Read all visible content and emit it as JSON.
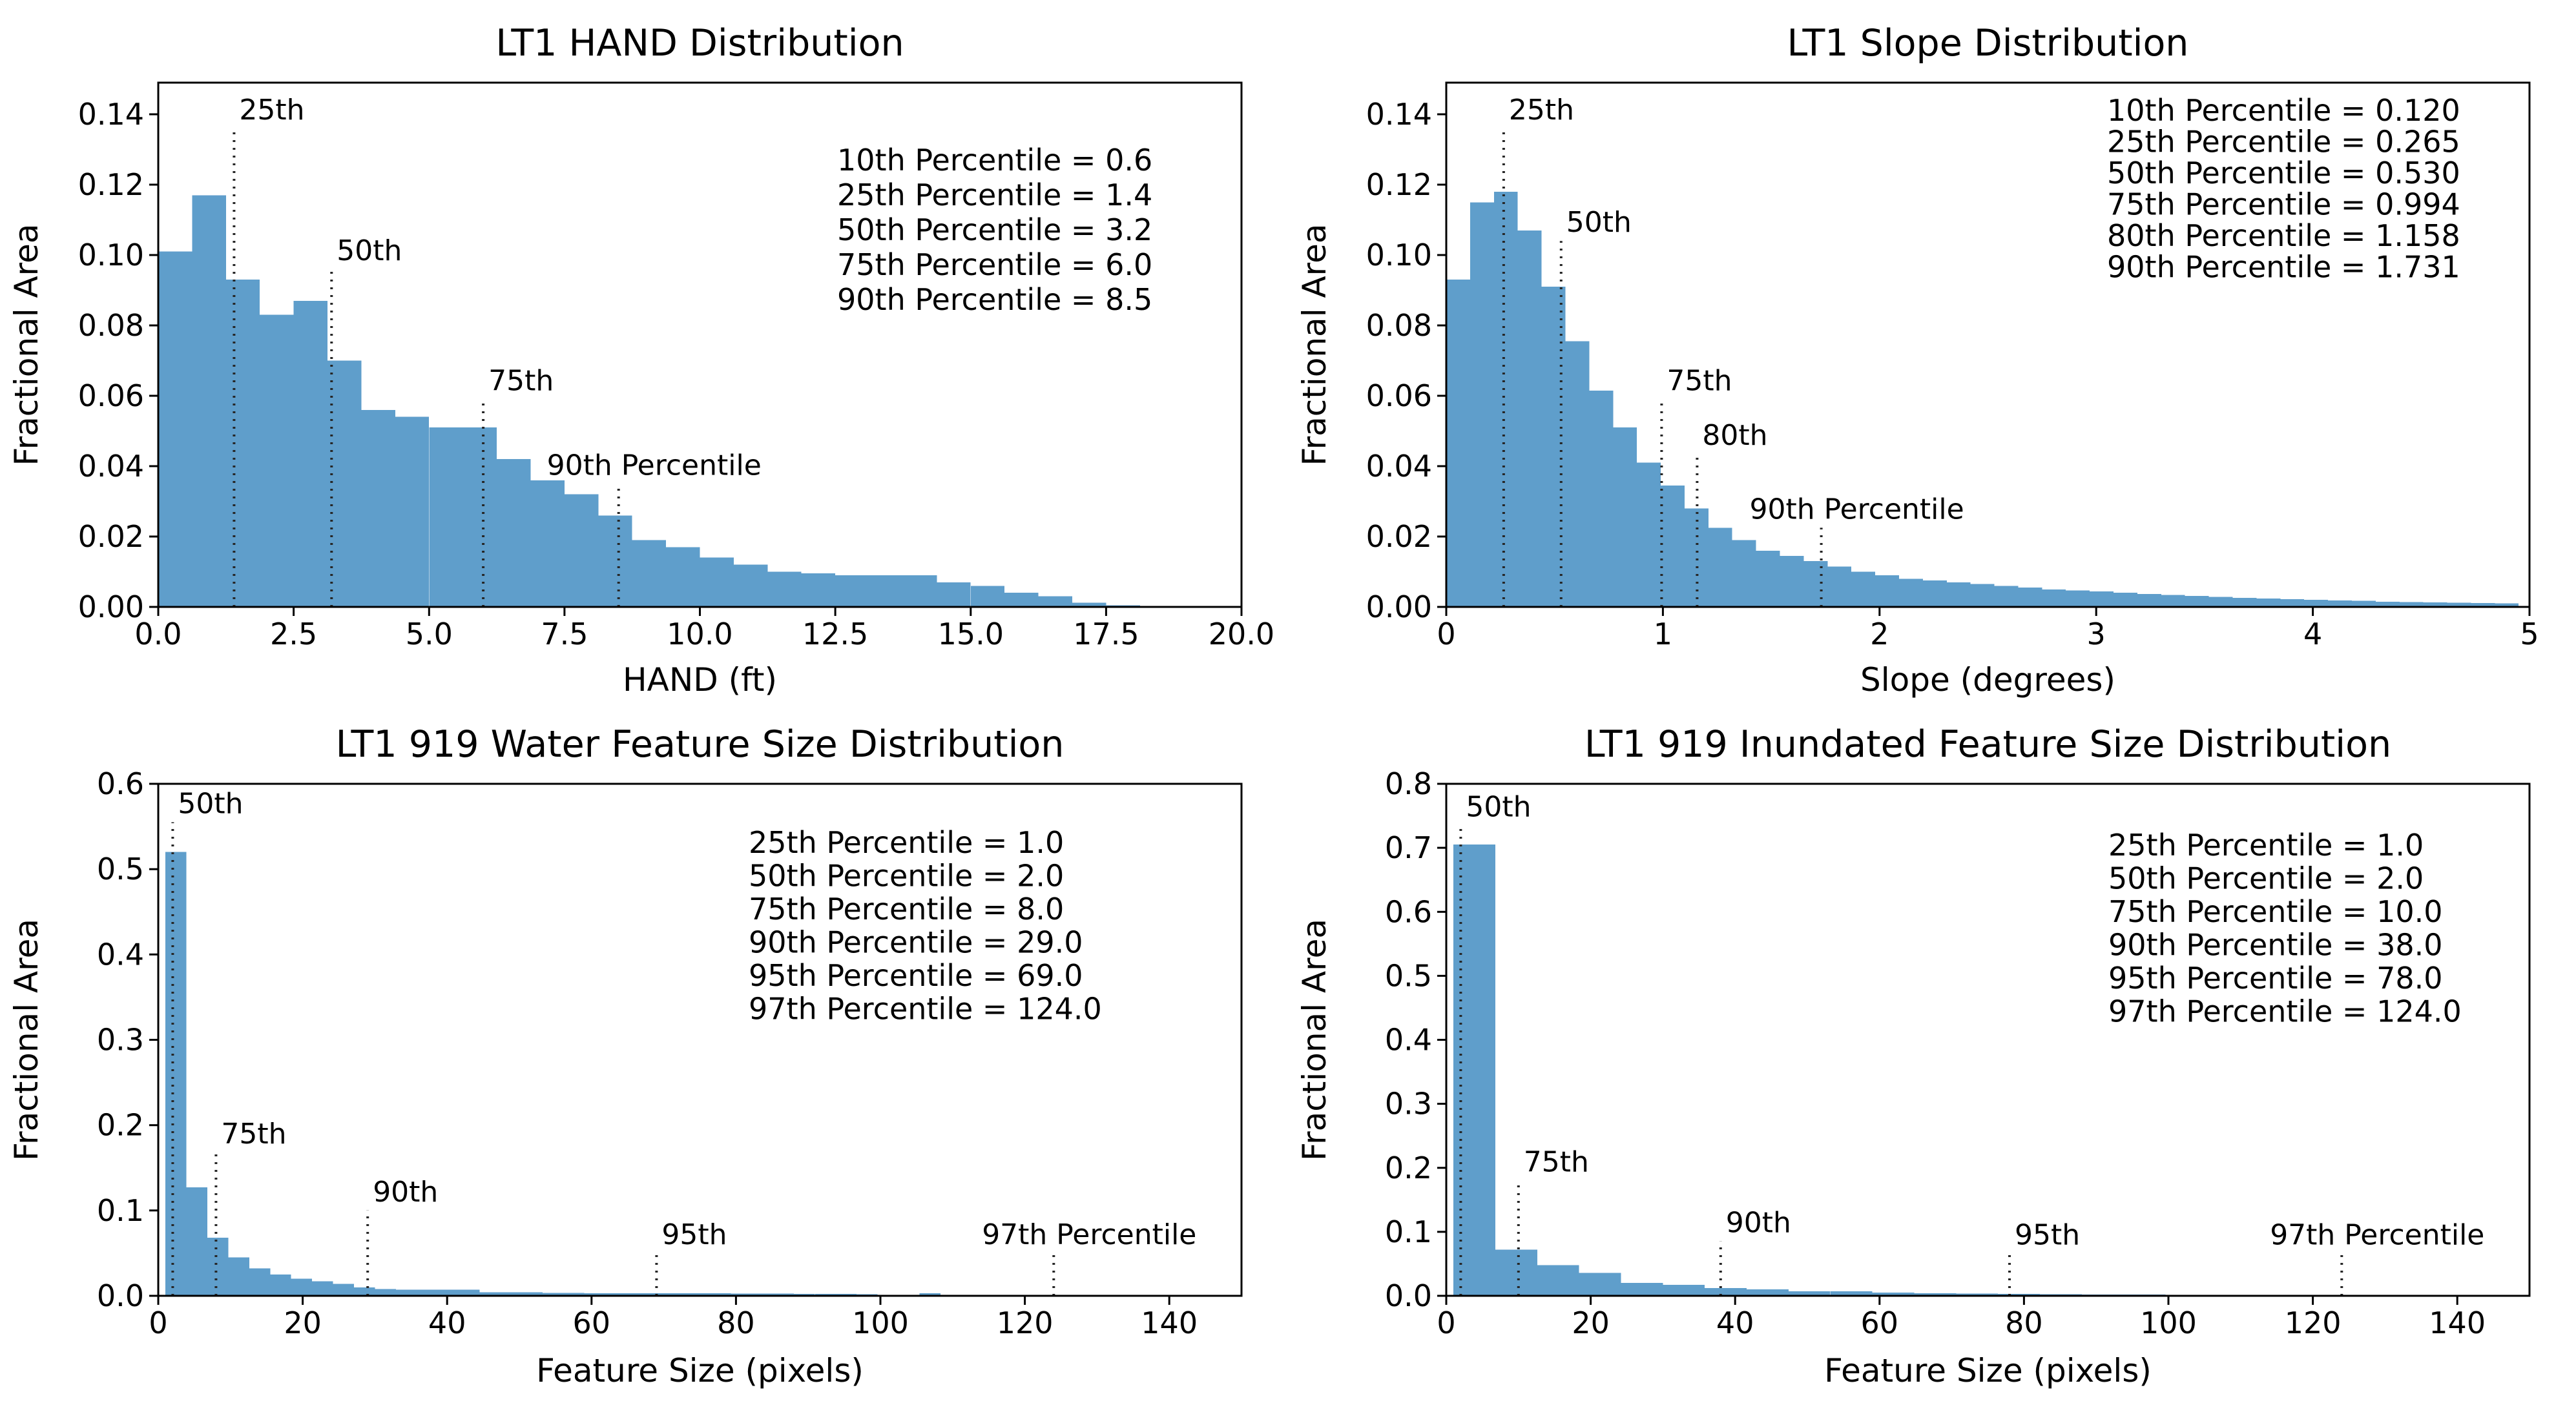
{
  "figure": {
    "background": "#ffffff",
    "bar_color": "#5f9ecb",
    "spine_color": "#000000",
    "dotted_line_color": "#262626",
    "text_color": "#000000"
  },
  "chart_data": [
    {
      "type": "bar",
      "id": "hand-distribution",
      "title": "LT1 HAND Distribution",
      "xlabel": "HAND (ft)",
      "ylabel": "Fractional Area",
      "xlim": [
        0,
        20
      ],
      "ylim": [
        0,
        0.149
      ],
      "grid": false,
      "xticks": {
        "values": [
          0,
          2.5,
          5,
          7.5,
          10,
          12.5,
          15,
          17.5,
          20
        ],
        "labels": [
          "0.0",
          "2.5",
          "5.0",
          "7.5",
          "10.0",
          "12.5",
          "15.0",
          "17.5",
          "20.0"
        ]
      },
      "yticks": {
        "values": [
          0,
          0.02,
          0.04,
          0.06,
          0.08,
          0.1,
          0.12,
          0.14
        ],
        "labels": [
          "0.00",
          "0.02",
          "0.04",
          "0.06",
          "0.08",
          "0.10",
          "0.12",
          "0.14"
        ]
      },
      "bins": {
        "start": 0,
        "width": 0.625
      },
      "values": [
        0.101,
        0.117,
        0.093,
        0.083,
        0.087,
        0.07,
        0.056,
        0.054,
        0.051,
        0.051,
        0.042,
        0.036,
        0.032,
        0.026,
        0.019,
        0.017,
        0.014,
        0.012,
        0.01,
        0.0095,
        0.009,
        0.009,
        0.009,
        0.007,
        0.006,
        0.004,
        0.003,
        0.0012,
        0.0005,
        0,
        0,
        0
      ],
      "percentile_lines": [
        {
          "label": "25th",
          "x": 1.4,
          "top": 0.136
        },
        {
          "label": "50th",
          "x": 3.2,
          "top": 0.096
        },
        {
          "label": "75th",
          "x": 6.0,
          "top": 0.059
        },
        {
          "label": "90th Percentile",
          "x": 8.5,
          "top": 0.035
        }
      ],
      "stats": [
        "10th Percentile = 0.6",
        "25th Percentile = 1.4",
        "50th Percentile = 3.2",
        "75th Percentile = 6.0",
        "90th Percentile = 8.5"
      ]
    },
    {
      "type": "bar",
      "id": "slope-distribution",
      "title": "LT1 Slope Distribution",
      "xlabel": "Slope (degrees)",
      "ylabel": "Fractional Area",
      "xlim": [
        0,
        5
      ],
      "ylim": [
        0,
        0.149
      ],
      "grid": false,
      "xticks": {
        "values": [
          0,
          1,
          2,
          3,
          4,
          5
        ],
        "labels": [
          "0",
          "1",
          "2",
          "3",
          "4",
          "5"
        ]
      },
      "yticks": {
        "values": [
          0,
          0.02,
          0.04,
          0.06,
          0.08,
          0.1,
          0.12,
          0.14
        ],
        "labels": [
          "0.00",
          "0.02",
          "0.04",
          "0.06",
          "0.08",
          "0.10",
          "0.12",
          "0.14"
        ]
      },
      "bins": {
        "start": 0,
        "width": 0.11
      },
      "values": [
        0.093,
        0.115,
        0.118,
        0.107,
        0.091,
        0.0755,
        0.0615,
        0.051,
        0.041,
        0.0345,
        0.028,
        0.0225,
        0.019,
        0.016,
        0.0145,
        0.013,
        0.0115,
        0.01,
        0.009,
        0.008,
        0.0075,
        0.007,
        0.0065,
        0.006,
        0.0055,
        0.005,
        0.0047,
        0.0044,
        0.004,
        0.0037,
        0.0034,
        0.0031,
        0.0028,
        0.0026,
        0.0024,
        0.0022,
        0.002,
        0.0018,
        0.0017,
        0.0015,
        0.0014,
        0.0013,
        0.0012,
        0.0011,
        0.001
      ],
      "percentile_lines": [
        {
          "label": "25th",
          "x": 0.265,
          "top": 0.136
        },
        {
          "label": "50th",
          "x": 0.53,
          "top": 0.104
        },
        {
          "label": "75th",
          "x": 0.994,
          "top": 0.059
        },
        {
          "label": "80th",
          "x": 1.158,
          "top": 0.0435
        },
        {
          "label": "90th Percentile",
          "x": 1.731,
          "top": 0.0225
        }
      ],
      "stats": [
        "10th Percentile = 0.120",
        "25th Percentile = 0.265",
        "50th Percentile = 0.530",
        "75th Percentile = 0.994",
        "80th Percentile = 1.158",
        "90th Percentile = 1.731"
      ]
    },
    {
      "type": "bar",
      "id": "water-feature-size-distribution",
      "title": "LT1 919 Water Feature Size Distribution",
      "xlabel": "Feature Size (pixels)",
      "ylabel": "Fractional Area",
      "xlim": [
        0,
        150
      ],
      "ylim": [
        0,
        0.6
      ],
      "grid": false,
      "xticks": {
        "values": [
          0,
          20,
          40,
          60,
          80,
          100,
          120,
          140
        ],
        "labels": [
          "0",
          "20",
          "40",
          "60",
          "80",
          "100",
          "120",
          "140"
        ]
      },
      "yticks": {
        "values": [
          0,
          0.1,
          0.2,
          0.3,
          0.4,
          0.5,
          0.6
        ],
        "labels": [
          "0.0",
          "0.1",
          "0.2",
          "0.3",
          "0.4",
          "0.5",
          "0.6"
        ]
      },
      "bins": {
        "start": 1,
        "width": 2.9
      },
      "values": [
        0.52,
        0.127,
        0.068,
        0.045,
        0.032,
        0.025,
        0.02,
        0.017,
        0.014,
        0.01,
        0.008,
        0.007,
        0.007,
        0.007,
        0.007,
        0.004,
        0.004,
        0.004,
        0.0035,
        0.0035,
        0.003,
        0.003,
        0.003,
        0.003,
        0.003,
        0.003,
        0.003,
        0.0028,
        0.0026,
        0.0025,
        0.0024,
        0.0023,
        0.0022,
        0.002,
        0,
        0,
        0.003,
        0,
        0,
        0,
        0,
        0,
        0,
        0,
        0,
        0,
        0,
        0,
        0,
        0
      ],
      "percentile_lines": [
        {
          "label": "50th",
          "x": 2,
          "top": 0.555
        },
        {
          "label": "75th",
          "x": 8,
          "top": 0.168
        },
        {
          "label": "90th",
          "x": 29,
          "top": 0.1
        },
        {
          "label": "95th",
          "x": 69,
          "top": 0.05
        },
        {
          "label": "97th Percentile",
          "x": 124,
          "top": 0.05
        }
      ],
      "stats": [
        "25th Percentile = 1.0",
        "50th Percentile = 2.0",
        "75th Percentile = 8.0",
        "90th Percentile = 29.0",
        "95th Percentile = 69.0",
        "97th Percentile = 124.0"
      ]
    },
    {
      "type": "bar",
      "id": "inundated-feature-size-distribution",
      "title": "LT1 919 Inundated Feature Size Distribution",
      "xlabel": "Feature Size (pixels)",
      "ylabel": "Fractional Area",
      "xlim": [
        0,
        150
      ],
      "ylim": [
        0,
        0.8
      ],
      "grid": false,
      "xticks": {
        "values": [
          0,
          20,
          40,
          60,
          80,
          100,
          120,
          140
        ],
        "labels": [
          "0",
          "20",
          "40",
          "60",
          "80",
          "100",
          "120",
          "140"
        ]
      },
      "yticks": {
        "values": [
          0,
          0.1,
          0.2,
          0.3,
          0.4,
          0.5,
          0.6,
          0.7,
          0.8
        ],
        "labels": [
          "0.0",
          "0.1",
          "0.2",
          "0.3",
          "0.4",
          "0.5",
          "0.6",
          "0.7",
          "0.8"
        ]
      },
      "bins": {
        "start": 1,
        "width": 5.8
      },
      "values": [
        0.705,
        0.072,
        0.048,
        0.036,
        0.02,
        0.017,
        0.012,
        0.01,
        0.007,
        0.007,
        0.005,
        0.004,
        0.0035,
        0.003,
        0.0025,
        0.002,
        0.002,
        0.0015,
        0.0015,
        0.001,
        0.001,
        0.001,
        0.001,
        0.001,
        0.001
      ],
      "percentile_lines": [
        {
          "label": "50th",
          "x": 2,
          "top": 0.735
        },
        {
          "label": "75th",
          "x": 10,
          "top": 0.18
        },
        {
          "label": "90th",
          "x": 38,
          "top": 0.085
        },
        {
          "label": "95th",
          "x": 78,
          "top": 0.066
        },
        {
          "label": "97th Percentile",
          "x": 124,
          "top": 0.066
        }
      ],
      "stats": [
        "25th Percentile = 1.0",
        "50th Percentile = 2.0",
        "75th Percentile = 10.0",
        "90th Percentile = 38.0",
        "95th Percentile = 78.0",
        "97th Percentile = 124.0"
      ]
    }
  ]
}
